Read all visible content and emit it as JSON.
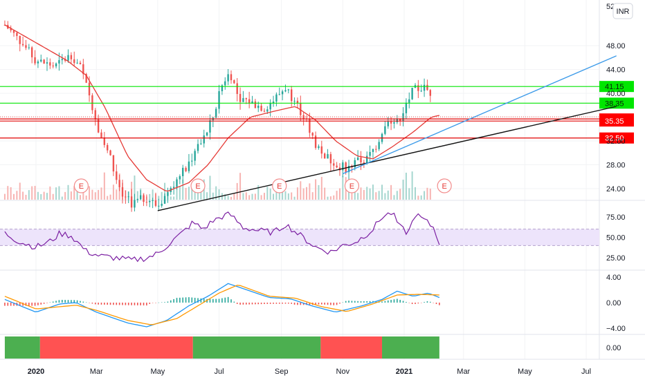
{
  "chart_data": {
    "type": "candlestick",
    "currency_badge": "INR",
    "price_axis": {
      "ticks": [
        "52.00",
        "48.00",
        "44.00",
        "40.00",
        "32.00",
        "28.00",
        "24.00"
      ],
      "range": [
        20.0,
        52.8
      ]
    },
    "rsi_axis": {
      "ticks": [
        "75.00",
        "50.00",
        "25.00"
      ],
      "range": [
        10,
        90
      ],
      "band": [
        40,
        60
      ]
    },
    "macd_axis": {
      "ticks": [
        "4.00",
        "0.00",
        "−4.00"
      ],
      "range": [
        -5.0,
        5.0
      ]
    },
    "bottom_axis": {
      "ticks": [
        "0.00"
      ]
    },
    "time_axis": {
      "labels": [
        "2020",
        "Mar",
        "May",
        "Jul",
        "Sep",
        "Nov",
        "2021",
        "Mar",
        "May",
        "Jul"
      ],
      "bold": [
        "2020",
        "2021"
      ]
    },
    "levels": [
      {
        "label": "41.15",
        "value": 41.15,
        "color": "#00e600",
        "kind": "resistance"
      },
      {
        "label": "38.35",
        "value": 38.35,
        "color": "#00e600",
        "kind": "resistance"
      },
      {
        "label": "35.70",
        "value": 35.7,
        "color": "#e00000",
        "kind": "last-price"
      },
      {
        "label": "35.35",
        "value": 35.35,
        "color": "#e00000",
        "kind": "support"
      },
      {
        "label": "32.50",
        "value": 32.5,
        "color": "#e00000",
        "kind": "support"
      }
    ],
    "earnings_markers": [
      "E",
      "E",
      "E",
      "E",
      "E"
    ],
    "close_series": [
      {
        "date": "2019-12-01",
        "close": 51.5
      },
      {
        "date": "2019-12-15",
        "close": 49.0
      },
      {
        "date": "2020-01-01",
        "close": 45.5
      },
      {
        "date": "2020-01-20",
        "close": 44.5
      },
      {
        "date": "2020-02-05",
        "close": 46.5
      },
      {
        "date": "2020-02-15",
        "close": 44.0
      },
      {
        "date": "2020-02-25",
        "close": 38.5
      },
      {
        "date": "2020-03-05",
        "close": 33.0
      },
      {
        "date": "2020-03-15",
        "close": 29.0
      },
      {
        "date": "2020-03-25",
        "close": 23.0
      },
      {
        "date": "2020-04-05",
        "close": 21.5
      },
      {
        "date": "2020-04-20",
        "close": 22.5
      },
      {
        "date": "2020-05-01",
        "close": 21.0
      },
      {
        "date": "2020-05-15",
        "close": 24.5
      },
      {
        "date": "2020-05-25",
        "close": 26.5
      },
      {
        "date": "2020-06-05",
        "close": 29.5
      },
      {
        "date": "2020-06-15",
        "close": 32.0
      },
      {
        "date": "2020-06-25",
        "close": 36.0
      },
      {
        "date": "2020-07-05",
        "close": 42.0
      },
      {
        "date": "2020-07-12",
        "close": 43.5
      },
      {
        "date": "2020-07-20",
        "close": 39.5
      },
      {
        "date": "2020-08-01",
        "close": 38.5
      },
      {
        "date": "2020-08-15",
        "close": 37.5
      },
      {
        "date": "2020-08-25",
        "close": 39.0
      },
      {
        "date": "2020-09-05",
        "close": 41.0
      },
      {
        "date": "2020-09-15",
        "close": 38.5
      },
      {
        "date": "2020-09-25",
        "close": 35.5
      },
      {
        "date": "2020-10-05",
        "close": 31.5
      },
      {
        "date": "2020-10-15",
        "close": 29.5
      },
      {
        "date": "2020-10-25",
        "close": 28.0
      },
      {
        "date": "2020-11-05",
        "close": 27.5
      },
      {
        "date": "2020-11-15",
        "close": 28.5
      },
      {
        "date": "2020-11-25",
        "close": 29.0
      },
      {
        "date": "2020-12-05",
        "close": 31.5
      },
      {
        "date": "2020-12-15",
        "close": 36.0
      },
      {
        "date": "2020-12-25",
        "close": 35.0
      },
      {
        "date": "2021-01-01",
        "close": 37.5
      },
      {
        "date": "2021-01-10",
        "close": 40.5
      },
      {
        "date": "2021-01-20",
        "close": 41.0
      },
      {
        "date": "2021-01-28",
        "close": 40.0
      },
      {
        "date": "2021-02-05",
        "close": 35.7
      }
    ],
    "moving_average": [
      {
        "date": "2019-12-01",
        "value": 51.5
      },
      {
        "date": "2020-01-01",
        "value": 48.5
      },
      {
        "date": "2020-02-01",
        "value": 45.5
      },
      {
        "date": "2020-02-20",
        "value": 43.0
      },
      {
        "date": "2020-03-10",
        "value": 37.5
      },
      {
        "date": "2020-04-01",
        "value": 29.5
      },
      {
        "date": "2020-04-20",
        "value": 25.5
      },
      {
        "date": "2020-05-10",
        "value": 23.5
      },
      {
        "date": "2020-06-01",
        "value": 25.0
      },
      {
        "date": "2020-06-20",
        "value": 28.0
      },
      {
        "date": "2020-07-10",
        "value": 32.5
      },
      {
        "date": "2020-08-01",
        "value": 36.0
      },
      {
        "date": "2020-08-25",
        "value": 37.0
      },
      {
        "date": "2020-09-15",
        "value": 37.8
      },
      {
        "date": "2020-10-05",
        "value": 35.5
      },
      {
        "date": "2020-10-25",
        "value": 32.0
      },
      {
        "date": "2020-11-15",
        "value": 29.5
      },
      {
        "date": "2020-12-01",
        "value": 29.0
      },
      {
        "date": "2020-12-20",
        "value": 31.0
      },
      {
        "date": "2021-01-10",
        "value": 33.5
      },
      {
        "date": "2021-01-28",
        "value": 36.0
      },
      {
        "date": "2021-02-05",
        "value": 36.3
      }
    ],
    "trendlines": [
      {
        "color": "#111111",
        "points": [
          {
            "date": "2020-05-01",
            "value": 20.3
          },
          {
            "date": "2021-07-31",
            "value": 37.8
          }
        ]
      },
      {
        "color": "#3d9be9",
        "points": [
          {
            "date": "2020-11-01",
            "value": 26.5
          },
          {
            "date": "2021-07-31",
            "value": 46.3
          }
        ]
      }
    ],
    "rsi": [
      {
        "date": "2019-12-01",
        "value": 55
      },
      {
        "date": "2019-12-15",
        "value": 45
      },
      {
        "date": "2020-01-01",
        "value": 38
      },
      {
        "date": "2020-01-15",
        "value": 45
      },
      {
        "date": "2020-01-25",
        "value": 55
      },
      {
        "date": "2020-02-05",
        "value": 52
      },
      {
        "date": "2020-02-20",
        "value": 33
      },
      {
        "date": "2020-03-05",
        "value": 27
      },
      {
        "date": "2020-03-20",
        "value": 25
      },
      {
        "date": "2020-04-05",
        "value": 22
      },
      {
        "date": "2020-04-20",
        "value": 25
      },
      {
        "date": "2020-05-01",
        "value": 30
      },
      {
        "date": "2020-05-15",
        "value": 45
      },
      {
        "date": "2020-05-25",
        "value": 55
      },
      {
        "date": "2020-06-05",
        "value": 68
      },
      {
        "date": "2020-06-15",
        "value": 60
      },
      {
        "date": "2020-06-25",
        "value": 70
      },
      {
        "date": "2020-07-05",
        "value": 76
      },
      {
        "date": "2020-07-12",
        "value": 78
      },
      {
        "date": "2020-07-25",
        "value": 62
      },
      {
        "date": "2020-08-10",
        "value": 58
      },
      {
        "date": "2020-08-25",
        "value": 56
      },
      {
        "date": "2020-09-05",
        "value": 66
      },
      {
        "date": "2020-09-20",
        "value": 52
      },
      {
        "date": "2020-10-05",
        "value": 38
      },
      {
        "date": "2020-10-20",
        "value": 32
      },
      {
        "date": "2020-11-01",
        "value": 40
      },
      {
        "date": "2020-11-15",
        "value": 45
      },
      {
        "date": "2020-12-01",
        "value": 60
      },
      {
        "date": "2020-12-10",
        "value": 75
      },
      {
        "date": "2020-12-20",
        "value": 80
      },
      {
        "date": "2020-12-28",
        "value": 62
      },
      {
        "date": "2021-01-05",
        "value": 55
      },
      {
        "date": "2021-01-12",
        "value": 78
      },
      {
        "date": "2021-01-22",
        "value": 70
      },
      {
        "date": "2021-01-30",
        "value": 62
      },
      {
        "date": "2021-02-05",
        "value": 44
      }
    ],
    "macd": [
      {
        "date": "2019-12-01",
        "value": 0.5
      },
      {
        "date": "2020-01-01",
        "value": -1.5
      },
      {
        "date": "2020-01-25",
        "value": -0.2
      },
      {
        "date": "2020-02-10",
        "value": 0.0
      },
      {
        "date": "2020-03-01",
        "value": -1.5
      },
      {
        "date": "2020-04-01",
        "value": -3.2
      },
      {
        "date": "2020-04-20",
        "value": -3.8
      },
      {
        "date": "2020-05-10",
        "value": -2.8
      },
      {
        "date": "2020-06-01",
        "value": -0.5
      },
      {
        "date": "2020-06-20",
        "value": 1.0
      },
      {
        "date": "2020-07-10",
        "value": 3.0
      },
      {
        "date": "2020-07-25",
        "value": 2.2
      },
      {
        "date": "2020-08-20",
        "value": 0.8
      },
      {
        "date": "2020-09-10",
        "value": 0.6
      },
      {
        "date": "2020-10-01",
        "value": -0.5
      },
      {
        "date": "2020-10-25",
        "value": -1.5
      },
      {
        "date": "2020-11-20",
        "value": -0.5
      },
      {
        "date": "2020-12-10",
        "value": 0.5
      },
      {
        "date": "2020-12-25",
        "value": 1.8
      },
      {
        "date": "2021-01-10",
        "value": 1.0
      },
      {
        "date": "2021-01-25",
        "value": 1.5
      },
      {
        "date": "2021-02-05",
        "value": 0.8
      }
    ],
    "signal": [
      {
        "date": "2019-12-01",
        "value": 1.0
      },
      {
        "date": "2020-01-01",
        "value": -1.0
      },
      {
        "date": "2020-02-10",
        "value": -0.4
      },
      {
        "date": "2020-03-01",
        "value": -1.2
      },
      {
        "date": "2020-04-01",
        "value": -2.8
      },
      {
        "date": "2020-04-25",
        "value": -3.5
      },
      {
        "date": "2020-05-20",
        "value": -2.5
      },
      {
        "date": "2020-06-10",
        "value": -0.5
      },
      {
        "date": "2020-07-01",
        "value": 1.5
      },
      {
        "date": "2020-07-20",
        "value": 2.8
      },
      {
        "date": "2020-08-20",
        "value": 1.0
      },
      {
        "date": "2020-09-15",
        "value": 0.7
      },
      {
        "date": "2020-10-10",
        "value": -0.6
      },
      {
        "date": "2020-11-05",
        "value": -1.4
      },
      {
        "date": "2020-12-01",
        "value": -0.2
      },
      {
        "date": "2020-12-25",
        "value": 1.2
      },
      {
        "date": "2021-01-15",
        "value": 1.3
      },
      {
        "date": "2021-02-05",
        "value": 1.2
      }
    ],
    "regime_bands": [
      {
        "from": "2019-12-01",
        "to": "2020-01-05",
        "color": "#4caf50"
      },
      {
        "from": "2020-01-05",
        "to": "2020-06-05",
        "color": "#ff5252"
      },
      {
        "from": "2020-06-05",
        "to": "2020-10-10",
        "color": "#4caf50"
      },
      {
        "from": "2020-10-10",
        "to": "2020-12-10",
        "color": "#ff5252"
      },
      {
        "from": "2020-12-10",
        "to": "2021-02-05",
        "color": "#4caf50"
      }
    ],
    "colors": {
      "up": "#26a69a",
      "down": "#ef5350",
      "ma": "#e53935",
      "rsi": "#7b1fa2",
      "rsi_band": "#ede4fb",
      "macd": "#2196f3",
      "signal": "#ff9800",
      "grid": "#f2f3f5",
      "axis_text": "#131722",
      "earnings": "#e53935"
    }
  }
}
